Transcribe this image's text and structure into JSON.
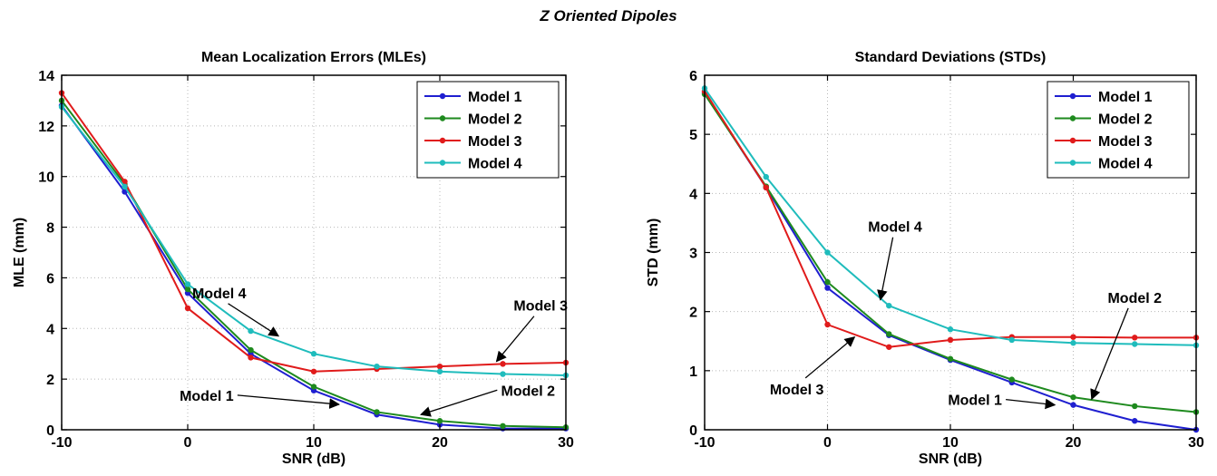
{
  "figure": {
    "suptitle": "Z Oriented Dipoles"
  },
  "chart_data": [
    {
      "type": "line",
      "title": "Mean Localization Errors (MLEs)",
      "xlabel": "SNR (dB)",
      "ylabel": "MLE (mm)",
      "xlim": [
        -10,
        30
      ],
      "ylim": [
        0,
        14
      ],
      "xticks": [
        -10,
        0,
        10,
        20,
        30
      ],
      "yticks": [
        0,
        2,
        4,
        6,
        8,
        10,
        12,
        14
      ],
      "grid": true,
      "legend_position": "top-right",
      "x": [
        -10,
        -5,
        0,
        5,
        10,
        15,
        20,
        25,
        30
      ],
      "series": [
        {
          "name": "Model 1",
          "color": "#1f1fd0",
          "values": [
            12.8,
            9.4,
            5.4,
            3.0,
            1.55,
            0.6,
            0.2,
            0.05,
            0.05
          ]
        },
        {
          "name": "Model 2",
          "color": "#1e8a1e",
          "values": [
            13.0,
            9.7,
            5.55,
            3.15,
            1.7,
            0.7,
            0.35,
            0.15,
            0.1
          ]
        },
        {
          "name": "Model 3",
          "color": "#e01b1b",
          "values": [
            13.3,
            9.8,
            4.8,
            2.85,
            2.3,
            2.4,
            2.5,
            2.6,
            2.65
          ]
        },
        {
          "name": "Model 4",
          "color": "#1fbcbc",
          "values": [
            12.75,
            9.6,
            5.75,
            3.9,
            3.0,
            2.5,
            2.3,
            2.2,
            2.15
          ]
        }
      ],
      "annotations": [
        {
          "text": "Model 4",
          "text_x": 2.5,
          "text_y": 5.2,
          "arrow_x": 7.2,
          "arrow_y": 3.7
        },
        {
          "text": "Model 3",
          "text_x": 28,
          "text_y": 4.7,
          "arrow_x": 24.5,
          "arrow_y": 2.7
        },
        {
          "text": "Model 1",
          "text_x": 1.5,
          "text_y": 1.15,
          "arrow_x": 12,
          "arrow_y": 1.0
        },
        {
          "text": "Model 2",
          "text_x": 27,
          "text_y": 1.35,
          "arrow_x": 18.5,
          "arrow_y": 0.6
        }
      ]
    },
    {
      "type": "line",
      "title": "Standard Deviations (STDs)",
      "xlabel": "SNR (dB)",
      "ylabel": "STD (mm)",
      "xlim": [
        -10,
        30
      ],
      "ylim": [
        0,
        6
      ],
      "xticks": [
        -10,
        0,
        10,
        20,
        30
      ],
      "yticks": [
        0,
        1,
        2,
        3,
        4,
        5,
        6
      ],
      "grid": true,
      "legend_position": "top-right",
      "x": [
        -10,
        -5,
        0,
        5,
        10,
        15,
        20,
        25,
        30
      ],
      "series": [
        {
          "name": "Model 1",
          "color": "#1f1fd0",
          "values": [
            5.7,
            4.1,
            2.4,
            1.6,
            1.18,
            0.8,
            0.42,
            0.15,
            0.0
          ]
        },
        {
          "name": "Model 2",
          "color": "#1e8a1e",
          "values": [
            5.68,
            4.12,
            2.5,
            1.62,
            1.2,
            0.85,
            0.55,
            0.4,
            0.3
          ]
        },
        {
          "name": "Model 3",
          "color": "#e01b1b",
          "values": [
            5.73,
            4.1,
            1.78,
            1.4,
            1.52,
            1.57,
            1.57,
            1.56,
            1.56
          ]
        },
        {
          "name": "Model 4",
          "color": "#1fbcbc",
          "values": [
            5.78,
            4.28,
            3.0,
            2.1,
            1.7,
            1.52,
            1.47,
            1.45,
            1.43
          ]
        }
      ],
      "annotations": [
        {
          "text": "Model 4",
          "text_x": 5.5,
          "text_y": 3.35,
          "arrow_x": 4.3,
          "arrow_y": 2.2
        },
        {
          "text": "Model 2",
          "text_x": 25,
          "text_y": 2.15,
          "arrow_x": 21.5,
          "arrow_y": 0.52
        },
        {
          "text": "Model 3",
          "text_x": -2.5,
          "text_y": 0.6,
          "arrow_x": 2.2,
          "arrow_y": 1.57
        },
        {
          "text": "Model 1",
          "text_x": 12,
          "text_y": 0.42,
          "arrow_x": 18.5,
          "arrow_y": 0.42
        }
      ]
    }
  ]
}
